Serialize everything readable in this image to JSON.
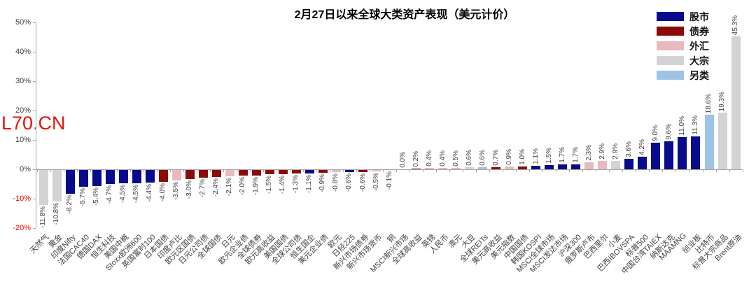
{
  "watermark": "L70.CN",
  "legend": [
    {
      "key": "equity",
      "label": "股市",
      "color": "#0a0a8c"
    },
    {
      "key": "bond",
      "label": "债券",
      "color": "#8b0b0b"
    },
    {
      "key": "fx",
      "label": "外汇",
      "color": "#e9b9bd"
    },
    {
      "key": "commodity",
      "label": "大宗",
      "color": "#d3d3d3"
    },
    {
      "key": "alt",
      "label": "另类",
      "color": "#9dc3e6"
    }
  ],
  "chart_data": {
    "type": "bar",
    "title": "2月27日以来全球大类资产表现（美元计价）",
    "xlabel": "",
    "ylabel": "",
    "ylim": [
      -20,
      50
    ],
    "ytick_labels": [
      "50%",
      "40%",
      "30%",
      "20%",
      "10%",
      "0%",
      "-10%",
      "-20%"
    ],
    "ytick_values": [
      50,
      40,
      30,
      20,
      10,
      0,
      -10,
      -20
    ],
    "grid": false,
    "legend_position": "upper right",
    "value_label_format": "one-decimal-percent",
    "categories": [
      "天然气",
      "黄金",
      "印度Nifty",
      "法国CAC40",
      "德国DAX",
      "恒生科技",
      "美国中概",
      "Stoxx欧洲600",
      "英国富时100",
      "日本国债",
      "印度卢比",
      "欧元区国债",
      "日元公司债",
      "全球国债",
      "日元",
      "欧元企业债",
      "全球债券",
      "欧元高收益",
      "美国国债",
      "全球公司债",
      "恒生国企",
      "美元企业债",
      "欧元",
      "日经225",
      "新兴市场债券",
      "新兴市场货币",
      "铜",
      "MSCI新兴市场",
      "全球高收益",
      "英镑",
      "人民币",
      "澳元",
      "大豆",
      "全球REITs",
      "美元高收益",
      "美元指数",
      "中国国债",
      "韩国KOSPI",
      "MSCI全球市场",
      "MSCI发达市场",
      "沪深300",
      "俄罗斯卢布",
      "巴西里尔",
      "小麦",
      "巴西IBOVSPA",
      "标普500",
      "中国台湾TAIEX",
      "纳斯达克",
      "MAAMNG",
      "创业板",
      "比特币",
      "标普大宗商品",
      "Brent原油"
    ],
    "values": [
      -11.8,
      -10.8,
      -8.2,
      -5.7,
      -5.4,
      -4.7,
      -4.5,
      -4.5,
      -4.4,
      -4.0,
      -3.5,
      -3.0,
      -2.7,
      -2.4,
      -2.1,
      -2.0,
      -1.9,
      -1.5,
      -1.4,
      -1.3,
      -1.1,
      -0.9,
      -0.8,
      -0.6,
      -0.6,
      -0.5,
      -0.1,
      0.0,
      0.2,
      0.4,
      0.4,
      0.5,
      0.6,
      0.6,
      0.7,
      0.9,
      1.0,
      1.1,
      1.5,
      1.7,
      1.7,
      2.3,
      2.9,
      2.9,
      3.6,
      4.2,
      9.0,
      9.6,
      11.0,
      11.3,
      18.6,
      19.3,
      45.3
    ],
    "groups": [
      "commodity",
      "commodity",
      "equity",
      "equity",
      "equity",
      "equity",
      "equity",
      "equity",
      "equity",
      "bond",
      "fx",
      "bond",
      "bond",
      "bond",
      "fx",
      "bond",
      "bond",
      "bond",
      "bond",
      "bond",
      "equity",
      "bond",
      "fx",
      "equity",
      "bond",
      "fx",
      "commodity",
      "equity",
      "bond",
      "fx",
      "fx",
      "fx",
      "commodity",
      "alt",
      "bond",
      "fx",
      "bond",
      "equity",
      "equity",
      "equity",
      "equity",
      "fx",
      "fx",
      "commodity",
      "equity",
      "equity",
      "equity",
      "equity",
      "equity",
      "equity",
      "alt",
      "commodity",
      "commodity"
    ]
  },
  "axis_colors": {
    "tick_label": "#404040",
    "negative_tick_label": "#ff0000",
    "axis_line": "#a6a6a6"
  }
}
